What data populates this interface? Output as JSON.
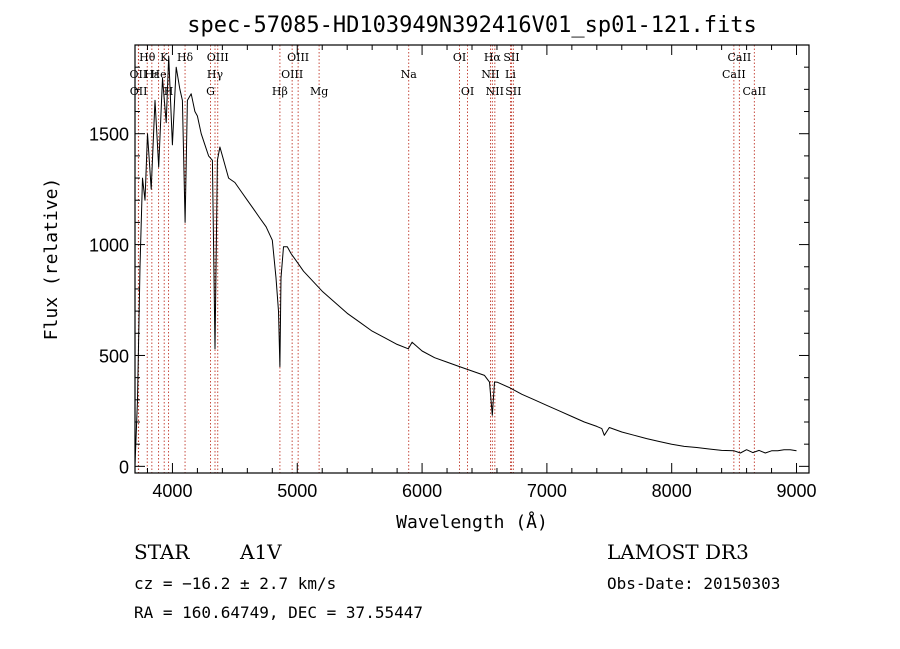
{
  "chart_data": {
    "type": "line",
    "title": "spec-57085-HD103949N392416V01_sp01-121.fits",
    "xlabel": "Wavelength (Å)",
    "ylabel": "Flux (relative)",
    "xlim": [
      3700,
      9100
    ],
    "ylim": [
      -30,
      1900
    ],
    "xticks": [
      4000,
      5000,
      6000,
      7000,
      8000,
      9000
    ],
    "yticks": [
      0,
      500,
      1000,
      1500
    ],
    "xtick_labels": [
      "4000",
      "5000",
      "6000",
      "7000",
      "8000",
      "9000"
    ],
    "ytick_labels": [
      "0",
      "500",
      "1000",
      "1500"
    ],
    "grid": false,
    "series": [
      {
        "name": "spectrum",
        "x": [
          3700,
          3720,
          3740,
          3760,
          3780,
          3800,
          3830,
          3860,
          3890,
          3920,
          3950,
          3970,
          4000,
          4030,
          4060,
          4080,
          4101,
          4120,
          4150,
          4180,
          4200,
          4230,
          4260,
          4290,
          4320,
          4341,
          4360,
          4380,
          4400,
          4450,
          4500,
          4550,
          4600,
          4650,
          4700,
          4750,
          4800,
          4830,
          4850,
          4861,
          4870,
          4890,
          4920,
          4950,
          5000,
          5050,
          5100,
          5200,
          5300,
          5400,
          5500,
          5600,
          5700,
          5800,
          5890,
          5920,
          6000,
          6100,
          6200,
          6300,
          6400,
          6500,
          6540,
          6563,
          6580,
          6600,
          6700,
          6800,
          6900,
          7000,
          7100,
          7200,
          7300,
          7400,
          7440,
          7460,
          7500,
          7600,
          7700,
          7800,
          7900,
          8000,
          8100,
          8200,
          8300,
          8400,
          8500,
          8550,
          8600,
          8650,
          8700,
          8750,
          8800,
          8850,
          8900,
          8950,
          9000
        ],
        "values": [
          5,
          300,
          900,
          1300,
          1200,
          1500,
          1250,
          1650,
          1350,
          1750,
          1550,
          1850,
          1450,
          1800,
          1700,
          1650,
          1100,
          1650,
          1680,
          1600,
          1580,
          1500,
          1450,
          1400,
          1380,
          530,
          1380,
          1440,
          1400,
          1300,
          1280,
          1240,
          1200,
          1160,
          1120,
          1080,
          1020,
          850,
          700,
          450,
          850,
          990,
          990,
          960,
          920,
          880,
          850,
          790,
          740,
          690,
          650,
          610,
          580,
          550,
          530,
          560,
          520,
          490,
          470,
          450,
          430,
          410,
          380,
          230,
          380,
          380,
          355,
          325,
          300,
          275,
          250,
          225,
          200,
          180,
          170,
          140,
          175,
          155,
          140,
          125,
          112,
          100,
          90,
          85,
          78,
          72,
          70,
          60,
          75,
          62,
          72,
          60,
          70,
          70,
          75,
          75,
          70
        ]
      }
    ],
    "line_markers": [
      {
        "label": "Hθ",
        "wavelength": 3798,
        "row": 1
      },
      {
        "label": "OII",
        "wavelength": 3727,
        "row": 2
      },
      {
        "label": "OII",
        "wavelength": 3729,
        "row": 3
      },
      {
        "label": "Hε",
        "wavelength": 3835,
        "row": 2
      },
      {
        "label": "He",
        "wavelength": 3889,
        "row": 2
      },
      {
        "label": "K",
        "wavelength": 3934,
        "row": 1
      },
      {
        "label": "H",
        "wavelength": 3969,
        "row": 3
      },
      {
        "label": "Hδ",
        "wavelength": 4101,
        "row": 1
      },
      {
        "label": "OIII",
        "wavelength": 4363,
        "row": 1
      },
      {
        "label": "Hγ",
        "wavelength": 4341,
        "row": 2
      },
      {
        "label": "G",
        "wavelength": 4305,
        "row": 3
      },
      {
        "label": "Hβ",
        "wavelength": 4861,
        "row": 3
      },
      {
        "label": "OIII",
        "wavelength": 5007,
        "row": 1
      },
      {
        "label": "OIII",
        "wavelength": 4959,
        "row": 2
      },
      {
        "label": "Mg",
        "wavelength": 5175,
        "row": 3
      },
      {
        "label": "Na",
        "wavelength": 5893,
        "row": 2
      },
      {
        "label": "OI",
        "wavelength": 6300,
        "row": 1
      },
      {
        "label": "OI",
        "wavelength": 6364,
        "row": 3
      },
      {
        "label": "Hα",
        "wavelength": 6563,
        "row": 1
      },
      {
        "label": "NII",
        "wavelength": 6548,
        "row": 2
      },
      {
        "label": "NII",
        "wavelength": 6583,
        "row": 3
      },
      {
        "label": "SII",
        "wavelength": 6716,
        "row": 1
      },
      {
        "label": "Li",
        "wavelength": 6708,
        "row": 2
      },
      {
        "label": "SII",
        "wavelength": 6731,
        "row": 3
      },
      {
        "label": "CaII",
        "wavelength": 8542,
        "row": 1
      },
      {
        "label": "CaII",
        "wavelength": 8498,
        "row": 2
      },
      {
        "label": "CaII",
        "wavelength": 8662,
        "row": 3
      }
    ]
  },
  "info": {
    "object_class": "STAR",
    "subclass": "A1V",
    "redshift_text": "cz = −16.2 ± 2.7 km/s",
    "coords_text": "RA = 160.64749, DEC =  37.55447",
    "survey": "LAMOST DR3",
    "obs_date_text": "Obs-Date: 20150303"
  }
}
